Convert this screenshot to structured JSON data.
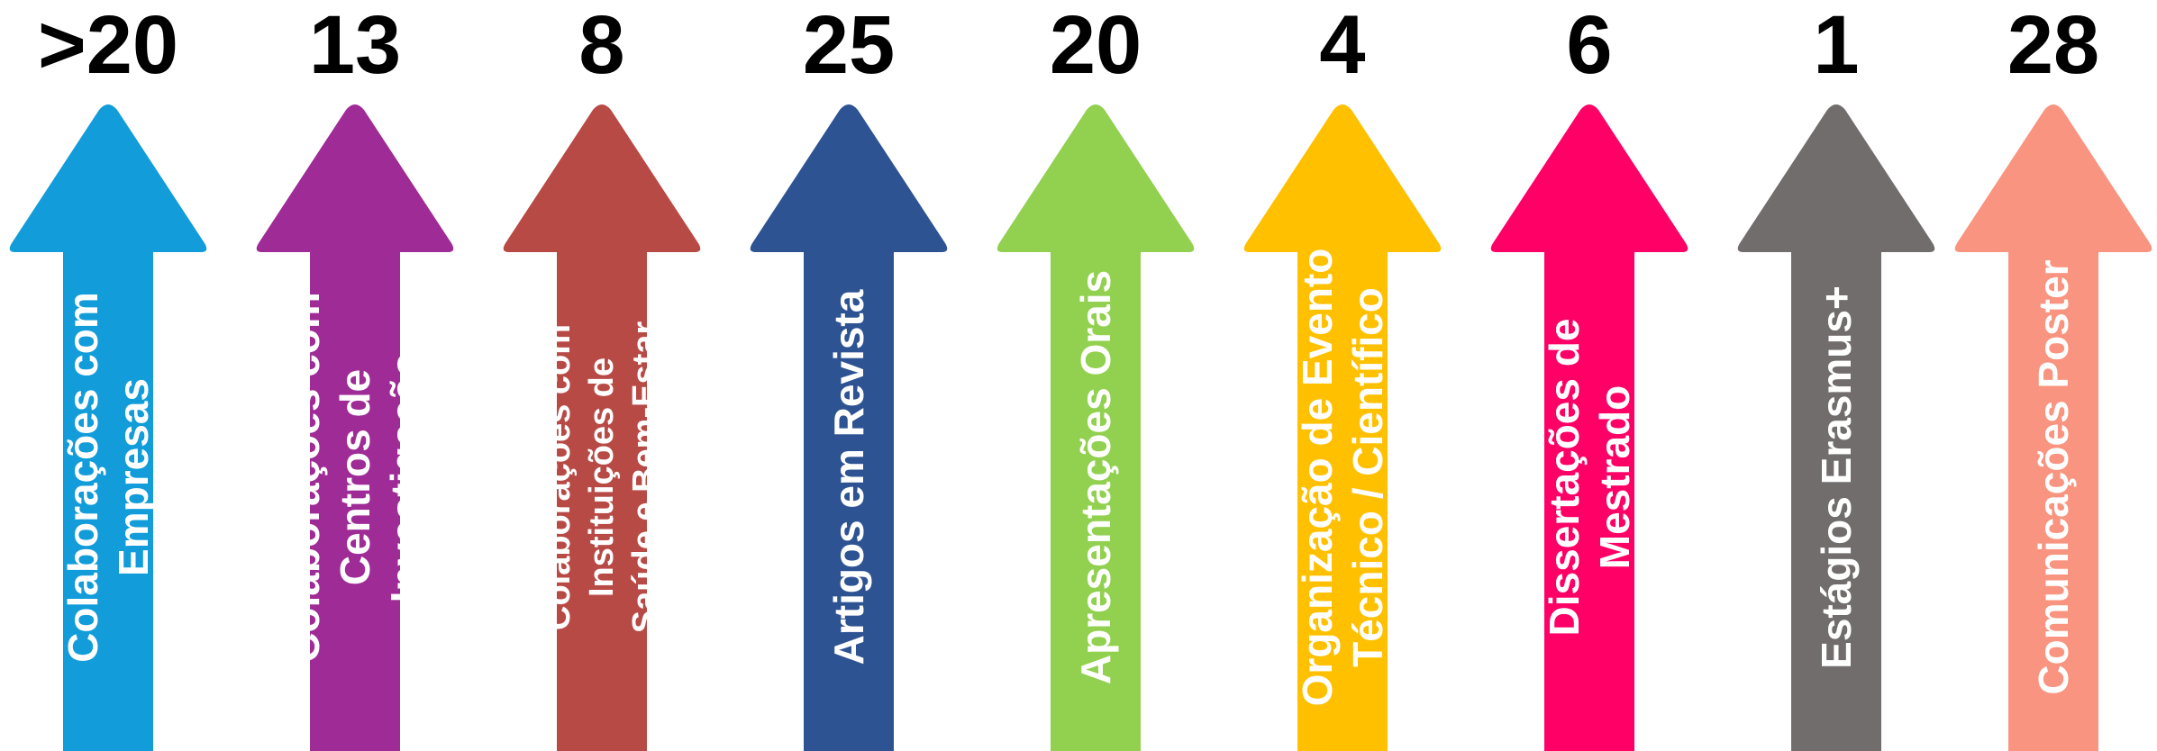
{
  "items": [
    {
      "count": ">20",
      "label": "Colaborações com\nEmpresas",
      "color": "#129cd9"
    },
    {
      "count": "13",
      "label": "Colaborações com\nCentros de Investigação",
      "color": "#9e2b96"
    },
    {
      "count": "8",
      "label": "Colaborações com Instituições de\nSaúde e Bem-Estar",
      "color": "#b84a46"
    },
    {
      "count": "25",
      "label": "Artigos em Revista",
      "color": "#2e5393"
    },
    {
      "count": "20",
      "label": "Apresentações Orais",
      "color": "#92d050"
    },
    {
      "count": "4",
      "label": "Organização de Evento\nTécnico / Científico",
      "color": "#ffc000"
    },
    {
      "count": "6",
      "label": "Dissertações de\nMestrado",
      "color": "#ff0066"
    },
    {
      "count": "1",
      "label": "Estágios Erasmus+",
      "color": "#716d6c"
    },
    {
      "count": "28",
      "label": "Comunicações Poster",
      "color": "#f8947f"
    }
  ]
}
